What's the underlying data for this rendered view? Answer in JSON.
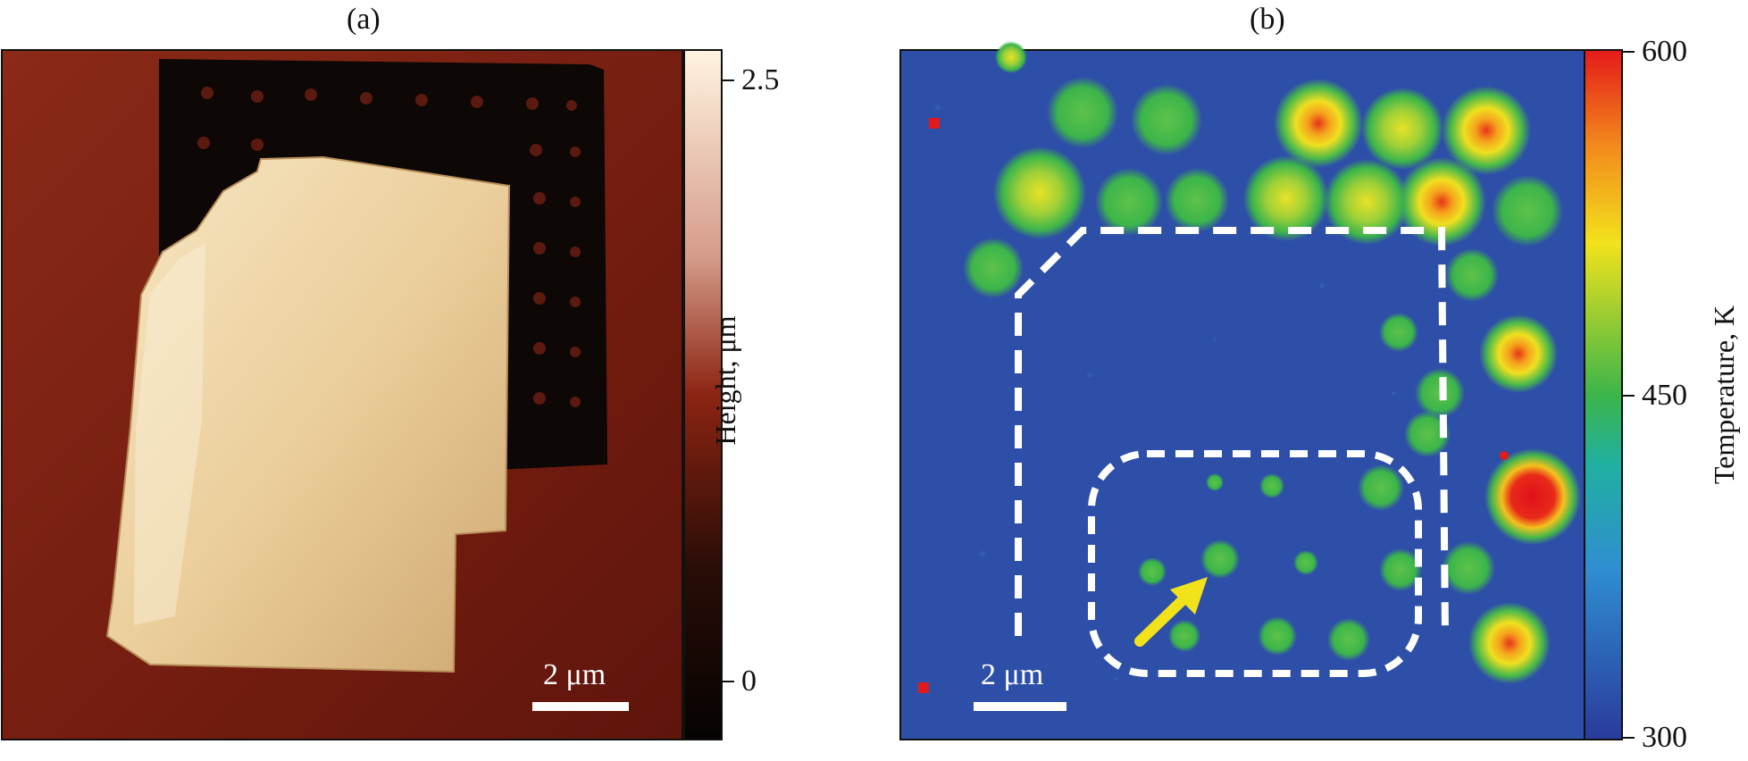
{
  "panels": [
    {
      "label": "(a)",
      "scale_bar": "2 μm",
      "colorbar": {
        "title": "Height, μm",
        "ticks": [
          "2.5",
          "0"
        ]
      }
    },
    {
      "label": "(b)",
      "scale_bar": "2 μm",
      "colorbar": {
        "title": "Temperature, K",
        "ticks": [
          "600",
          "450",
          "300"
        ]
      }
    }
  ],
  "colors": {
    "afm_background": "#7a1f12",
    "afm_pit_region": "#0d0705",
    "afm_flake": "#ecd2a2",
    "thermal_background": "#2e4fa8",
    "hot_spot": "#e01b1b",
    "warm_spot": "#f2e21c",
    "mid_spot": "#3cb54a",
    "marker_dashes": "#ffffff",
    "arrow": "#f2e21c"
  }
}
